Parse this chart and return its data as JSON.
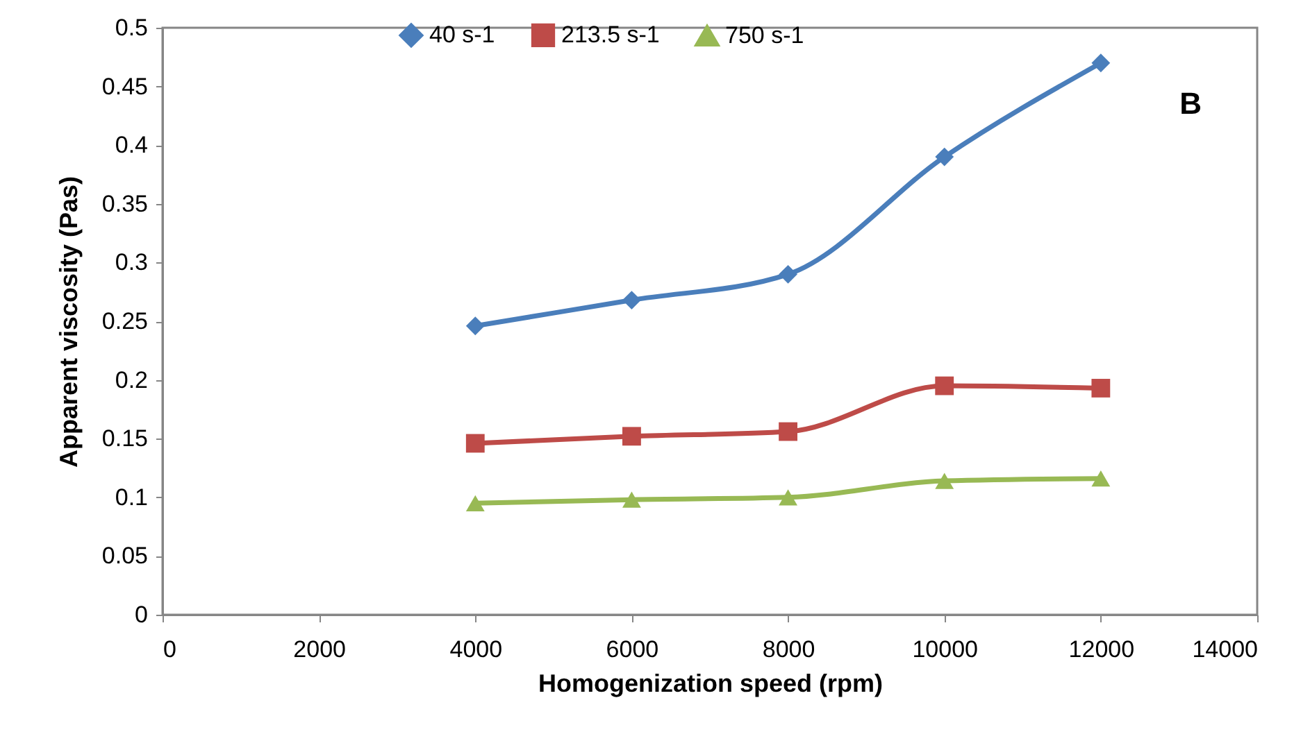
{
  "chart_data": {
    "type": "line",
    "xlabel": "Homogenization speed (rpm)",
    "ylabel": "Apparent viscosity (Pas)",
    "x": [
      4000,
      6000,
      8000,
      10000,
      12000
    ],
    "series": [
      {
        "name": "40 s-1",
        "color": "#4a7ebb",
        "marker": "diamond",
        "values": [
          0.246,
          0.268,
          0.29,
          0.39,
          0.47
        ]
      },
      {
        "name": "213.5 s-1",
        "color": "#be4b48",
        "marker": "square",
        "values": [
          0.146,
          0.152,
          0.156,
          0.195,
          0.193
        ]
      },
      {
        "name": "750 s-1",
        "color": "#98b954",
        "marker": "triangle",
        "values": [
          0.095,
          0.098,
          0.1,
          0.114,
          0.116
        ]
      }
    ],
    "xlim": [
      0,
      14000
    ],
    "xticks": [
      0,
      2000,
      4000,
      6000,
      8000,
      10000,
      12000,
      14000
    ],
    "ylim": [
      0,
      0.5
    ],
    "yticks": [
      0,
      0.05,
      0.1,
      0.15,
      0.2,
      0.25,
      0.3,
      0.35,
      0.4,
      0.45,
      0.5
    ],
    "annotations": [
      "B"
    ],
    "legend": "top",
    "grid": false,
    "line_style": "solid"
  }
}
